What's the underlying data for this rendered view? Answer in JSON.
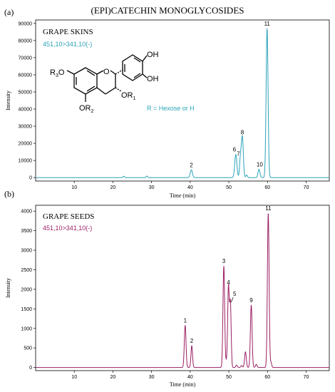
{
  "figure": {
    "title": "(EPI)CATECHIN MONOGLYCOSIDES"
  },
  "structure": {
    "oh_top": "OH",
    "oh_bottom": "OH",
    "r3o": "R",
    "r3_sub": "3",
    "r3_o": "O",
    "or1": "OR",
    "r1_sub": "1",
    "or2": "OR",
    "r2_sub": "2",
    "ring_o": "O",
    "legend": "R = Hexose or H"
  },
  "colors": {
    "skins": "#2aa3b8",
    "seeds": "#9b1f63",
    "axis": "#000000"
  },
  "chart_data": [
    {
      "type": "line",
      "panel_label": "(a)",
      "sample_label": "GRAPE SKINS",
      "transition": "451,10>341,10(-)",
      "xlabel": "Time (min)",
      "ylabel": "Intensity",
      "xlim": [
        0,
        76
      ],
      "ylim": [
        -2000,
        92000
      ],
      "xticks": [
        10,
        20,
        30,
        40,
        50,
        60,
        70
      ],
      "yticks": [
        0,
        10000,
        20000,
        30000,
        40000,
        50000,
        60000,
        70000,
        80000,
        90000
      ],
      "baseline": 0,
      "peaks": [
        {
          "label": "",
          "x": 22.8,
          "y": 800,
          "w": 0.2
        },
        {
          "label": "",
          "x": 28.8,
          "y": 900,
          "w": 0.2
        },
        {
          "label": "2",
          "x": 40.3,
          "y": 4500,
          "w": 0.28
        },
        {
          "label": "6",
          "x": 51.8,
          "y": 13500,
          "w": 0.28
        },
        {
          "label": "7",
          "x": 53.0,
          "y": 11000,
          "w": 0.22
        },
        {
          "label": "8",
          "x": 53.5,
          "y": 23500,
          "w": 0.25
        },
        {
          "label": "",
          "x": 54.6,
          "y": 1500,
          "w": 0.2
        },
        {
          "label": "10",
          "x": 57.8,
          "y": 4800,
          "w": 0.25
        },
        {
          "label": "11",
          "x": 59.9,
          "y": 87000,
          "w": 0.25
        }
      ]
    },
    {
      "type": "line",
      "panel_label": "(b)",
      "sample_label": "GRAPE SEEDS",
      "transition": "451,10>341,10(-)",
      "xlabel": "Time (min)",
      "ylabel": "Intensity",
      "xlim": [
        0,
        76
      ],
      "ylim": [
        -80,
        4150
      ],
      "xticks": [
        10,
        20,
        30,
        40,
        50,
        60,
        70
      ],
      "yticks": [
        0,
        500,
        1000,
        1500,
        2000,
        2500,
        3000,
        3500,
        4000
      ],
      "baseline": 0,
      "peaks": [
        {
          "label": "1",
          "x": 38.7,
          "y": 1080,
          "w": 0.22
        },
        {
          "label": "2",
          "x": 40.4,
          "y": 560,
          "w": 0.2
        },
        {
          "label": "3",
          "x": 48.7,
          "y": 2600,
          "w": 0.22
        },
        {
          "label": "",
          "x": 49.4,
          "y": 150,
          "w": 0.2
        },
        {
          "label": "4",
          "x": 49.9,
          "y": 2050,
          "w": 0.2
        },
        {
          "label": "5",
          "x": 50.4,
          "y": 1650,
          "w": 0.2
        },
        {
          "label": "",
          "x": 52.0,
          "y": 60,
          "w": 0.2
        },
        {
          "label": "",
          "x": 53.3,
          "y": 50,
          "w": 0.2
        },
        {
          "label": "",
          "x": 54.3,
          "y": 400,
          "w": 0.22
        },
        {
          "label": "9",
          "x": 55.8,
          "y": 1600,
          "w": 0.22
        },
        {
          "label": "",
          "x": 57.1,
          "y": 80,
          "w": 0.2
        },
        {
          "label": "11",
          "x": 60.2,
          "y": 3950,
          "w": 0.22
        },
        {
          "label": "",
          "x": 60.9,
          "y": 120,
          "w": 0.2
        }
      ]
    }
  ]
}
